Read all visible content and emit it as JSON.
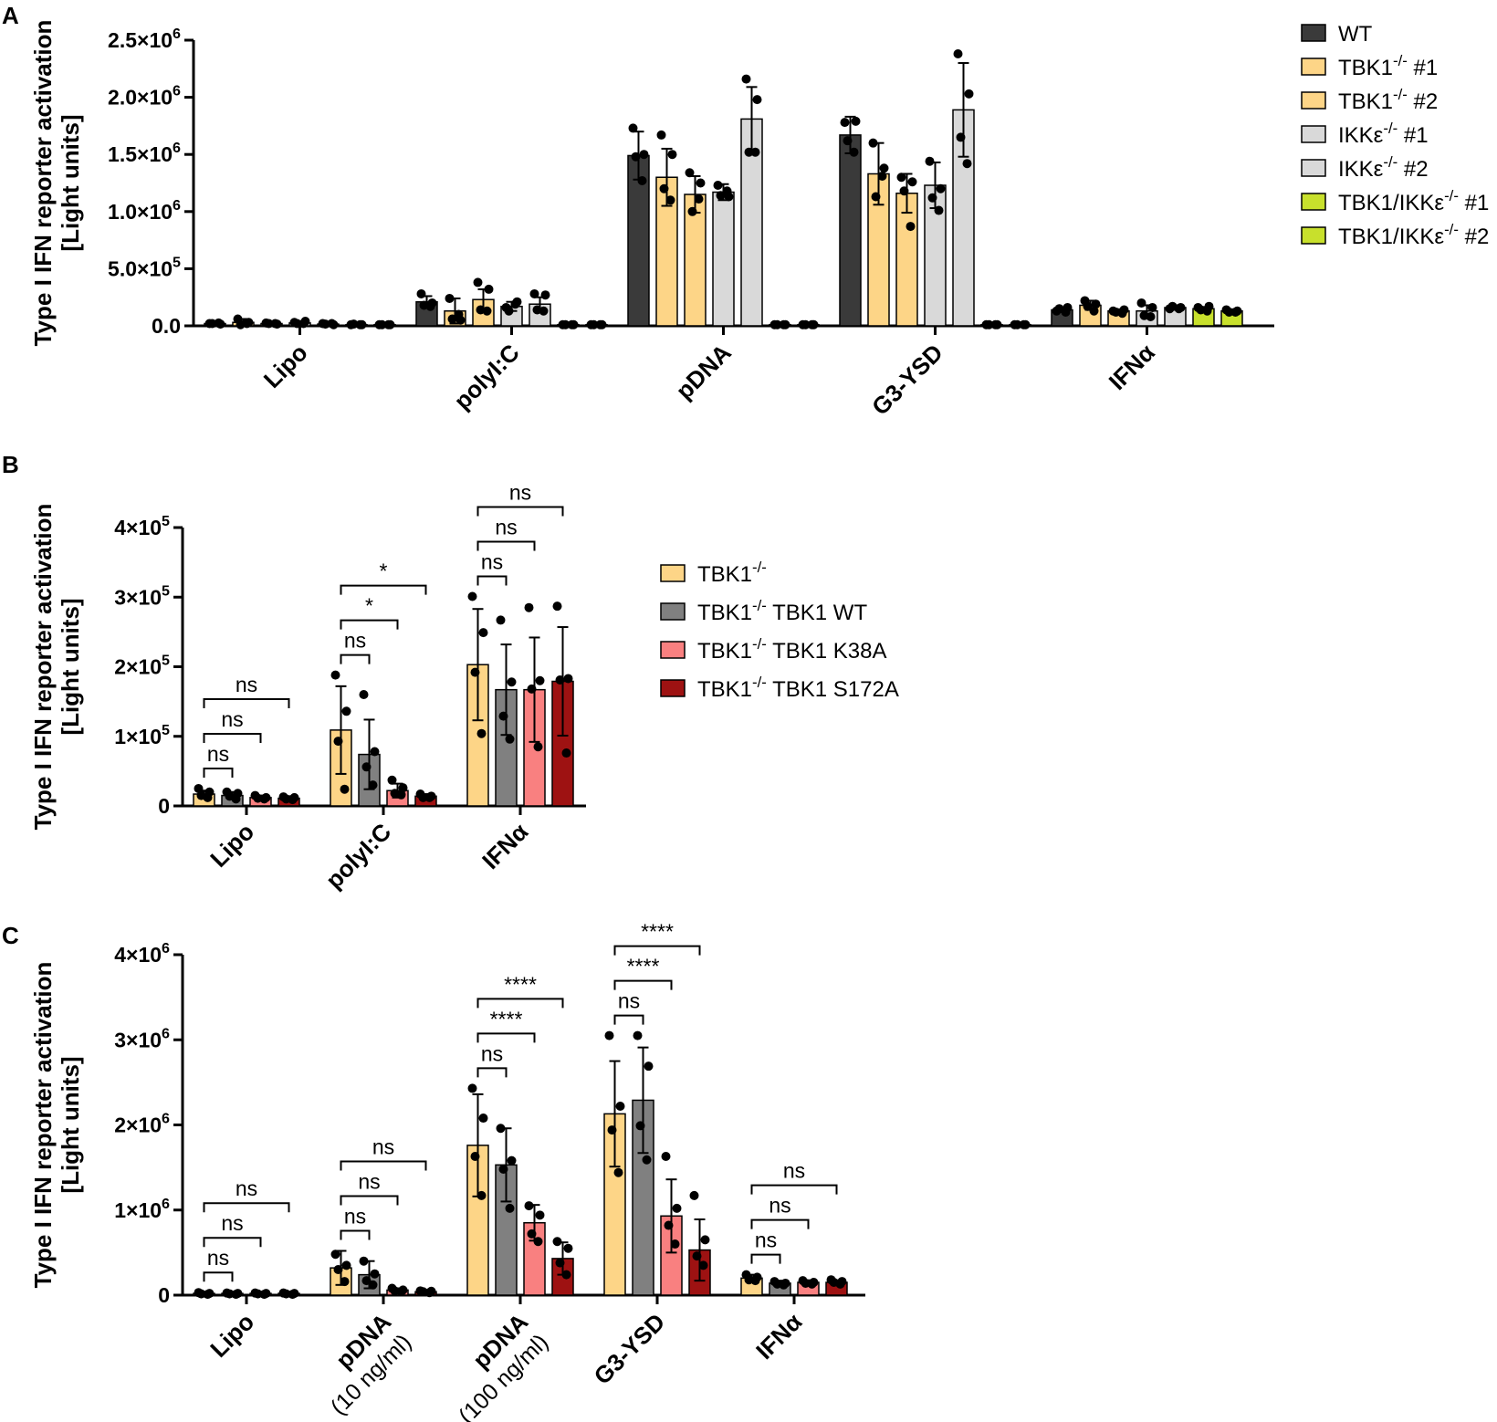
{
  "chart_data": [
    {
      "panel": "A",
      "type": "bar",
      "ylabel": [
        "Type I IFN reporter activation",
        "[Light units]"
      ],
      "ylim": [
        0,
        2500000
      ],
      "yticks": [
        {
          "value": 0,
          "label": "0.0"
        },
        {
          "value": 500000,
          "label": "5.0×10",
          "exp": "5"
        },
        {
          "value": 1000000,
          "label": "1.0×10",
          "exp": "6"
        },
        {
          "value": 1500000,
          "label": "1.5×10",
          "exp": "6"
        },
        {
          "value": 2000000,
          "label": "2.0×10",
          "exp": "6"
        },
        {
          "value": 2500000,
          "label": "2.5×10",
          "exp": "6"
        }
      ],
      "categories": [
        {
          "label": "Lipo"
        },
        {
          "label": "polyI:C"
        },
        {
          "label": "pDNA"
        },
        {
          "label": "G3-YSD"
        },
        {
          "label": "IFNα"
        }
      ],
      "series": [
        {
          "name": "WT",
          "suffix": "",
          "color": "#3a3a3a"
        },
        {
          "name": "TBK1",
          "sup": "-/-",
          "suffix": " #1",
          "color": "#fdd587"
        },
        {
          "name": "TBK1",
          "sup": "-/-",
          "suffix": " #2",
          "color": "#fdd587"
        },
        {
          "name": "IKKε",
          "sup": "-/-",
          "suffix": " #1",
          "color": "#d9d9d9"
        },
        {
          "name": "IKKε",
          "sup": "-/-",
          "suffix": " #2",
          "color": "#d9d9d9"
        },
        {
          "name": "TBK1/IKKε",
          "sup": "-/-",
          "suffix": " #1",
          "color": "#c8e02c"
        },
        {
          "name": "TBK1/IKKε",
          "sup": "-/-",
          "suffix": " #2",
          "color": "#c8e02c"
        }
      ],
      "values": [
        [
          20000,
          30000,
          20000,
          25000,
          15000,
          10000,
          10000
        ],
        [
          210000,
          130000,
          230000,
          170000,
          190000,
          10000,
          10000
        ],
        [
          1490000,
          1300000,
          1150000,
          1170000,
          1810000,
          10000,
          10000
        ],
        [
          1670000,
          1330000,
          1160000,
          1230000,
          1890000,
          10000,
          10000
        ],
        [
          140000,
          180000,
          130000,
          130000,
          160000,
          150000,
          130000
        ]
      ],
      "errors": [
        [
          10000,
          30000,
          10000,
          15000,
          10000,
          5000,
          5000
        ],
        [
          50000,
          110000,
          90000,
          40000,
          60000,
          5000,
          5000
        ],
        [
          210000,
          250000,
          160000,
          70000,
          280000,
          5000,
          5000
        ],
        [
          160000,
          270000,
          170000,
          200000,
          410000,
          5000,
          5000
        ],
        [
          20000,
          40000,
          15000,
          50000,
          20000,
          15000,
          15000
        ]
      ],
      "points": [
        [
          [
            20000,
            15000,
            20000,
            25000
          ],
          [
            60000,
            30000,
            10000,
            20000
          ],
          [
            25000,
            15000,
            20000,
            20000
          ],
          [
            30000,
            40000,
            20000,
            20000
          ],
          [
            20000,
            10000,
            15000,
            20000
          ],
          [
            10000,
            10000,
            15000,
            10000
          ],
          [
            10000,
            10000,
            10000,
            10000
          ]
        ],
        [
          [
            280000,
            200000,
            180000,
            170000
          ],
          [
            240000,
            50000,
            60000,
            100000
          ],
          [
            380000,
            320000,
            140000,
            130000
          ],
          [
            160000,
            210000,
            130000,
            190000
          ],
          [
            280000,
            270000,
            140000,
            130000
          ],
          [
            10000,
            10000,
            10000,
            10000
          ],
          [
            10000,
            10000,
            10000,
            10000
          ]
        ],
        [
          [
            1730000,
            1500000,
            1480000,
            1270000
          ],
          [
            1670000,
            1500000,
            1200000,
            1100000
          ],
          [
            1340000,
            1250000,
            1000000,
            1110000
          ],
          [
            1230000,
            1130000,
            1140000,
            1180000
          ],
          [
            2160000,
            1980000,
            1520000,
            1520000
          ],
          [
            10000,
            10000,
            10000,
            10000
          ],
          [
            10000,
            10000,
            10000,
            10000
          ]
        ],
        [
          [
            1780000,
            1790000,
            1620000,
            1520000
          ],
          [
            1600000,
            1380000,
            1130000,
            1310000
          ],
          [
            1300000,
            1260000,
            1180000,
            870000
          ],
          [
            1440000,
            1200000,
            1120000,
            1010000
          ],
          [
            2380000,
            2030000,
            1650000,
            1420000
          ],
          [
            10000,
            10000,
            10000,
            10000
          ],
          [
            10000,
            10000,
            10000,
            10000
          ]
        ],
        [
          [
            130000,
            160000,
            150000,
            120000
          ],
          [
            220000,
            190000,
            170000,
            130000
          ],
          [
            130000,
            140000,
            120000,
            110000
          ],
          [
            200000,
            160000,
            90000,
            80000
          ],
          [
            150000,
            160000,
            170000,
            150000
          ],
          [
            160000,
            170000,
            140000,
            130000
          ],
          [
            140000,
            130000,
            120000,
            120000
          ]
        ]
      ],
      "legend": "top-right"
    },
    {
      "panel": "B",
      "type": "bar",
      "ylabel": [
        "Type I IFN reporter activation",
        "[Light units]"
      ],
      "ylim": [
        0,
        400000
      ],
      "yticks": [
        {
          "value": 0,
          "label": "0"
        },
        {
          "value": 100000,
          "label": "1×10",
          "exp": "5"
        },
        {
          "value": 200000,
          "label": "2×10",
          "exp": "5"
        },
        {
          "value": 300000,
          "label": "3×10",
          "exp": "5"
        },
        {
          "value": 400000,
          "label": "4×10",
          "exp": "5"
        }
      ],
      "categories": [
        {
          "label": "Lipo"
        },
        {
          "label": "polyI:C"
        },
        {
          "label": "IFNα"
        }
      ],
      "series": [
        {
          "name": "TBK1",
          "sup": "-/-",
          "suffix": "",
          "color": "#fdd587"
        },
        {
          "name": "TBK1",
          "sup": "-/-",
          "suffix": " TBK1 WT",
          "color": "#808080"
        },
        {
          "name": "TBK1",
          "sup": "-/-",
          "suffix": " TBK1 K38A",
          "color": "#f98080"
        },
        {
          "name": "TBK1",
          "sup": "-/-",
          "suffix": " TBK1 S172A",
          "color": "#9e1212"
        }
      ],
      "values": [
        [
          17000,
          15000,
          12000,
          11000
        ],
        [
          109000,
          74000,
          22000,
          14000
        ],
        [
          203000,
          167000,
          167000,
          179000
        ]
      ],
      "errors": [
        [
          5000,
          5000,
          3000,
          3000
        ],
        [
          63000,
          50000,
          10000,
          3000
        ],
        [
          80000,
          65000,
          75000,
          78000
        ]
      ],
      "points": [
        [
          [
            25000,
            20000,
            15000,
            12000
          ],
          [
            20000,
            18000,
            14000,
            10000
          ],
          [
            15000,
            12000,
            11000,
            10000
          ],
          [
            13000,
            12000,
            10000,
            9000
          ]
        ],
        [
          [
            188000,
            136000,
            93000,
            24000
          ],
          [
            160000,
            78000,
            56000,
            30000
          ],
          [
            37000,
            26000,
            18000,
            16000
          ],
          [
            17000,
            14000,
            12000,
            12000
          ]
        ],
        [
          [
            301000,
            249000,
            192000,
            104000
          ],
          [
            267000,
            178000,
            129000,
            96000
          ],
          [
            285000,
            180000,
            168000,
            85000
          ],
          [
            287000,
            183000,
            181000,
            76000
          ]
        ]
      ],
      "annotations": [
        {
          "category": 0,
          "from": 0,
          "to": 1,
          "text": "ns",
          "level": 0
        },
        {
          "category": 0,
          "from": 0,
          "to": 2,
          "text": "ns",
          "level": 1
        },
        {
          "category": 0,
          "from": 0,
          "to": 3,
          "text": "ns",
          "level": 2
        },
        {
          "category": 1,
          "from": 0,
          "to": 1,
          "text": "ns",
          "level": 0
        },
        {
          "category": 1,
          "from": 0,
          "to": 2,
          "text": "*",
          "level": 1
        },
        {
          "category": 1,
          "from": 0,
          "to": 3,
          "text": "*",
          "level": 2
        },
        {
          "category": 2,
          "from": 0,
          "to": 1,
          "text": "ns",
          "level": 0
        },
        {
          "category": 2,
          "from": 0,
          "to": 2,
          "text": "ns",
          "level": 1
        },
        {
          "category": 2,
          "from": 0,
          "to": 3,
          "text": "ns",
          "level": 2
        }
      ],
      "legend": "right"
    },
    {
      "panel": "C",
      "type": "bar",
      "ylabel": [
        "Type I IFN reporter activation",
        "[Light units]"
      ],
      "ylim": [
        0,
        4000000
      ],
      "yticks": [
        {
          "value": 0,
          "label": "0"
        },
        {
          "value": 1000000,
          "label": "1×10",
          "exp": "6"
        },
        {
          "value": 2000000,
          "label": "2×10",
          "exp": "6"
        },
        {
          "value": 3000000,
          "label": "3×10",
          "exp": "6"
        },
        {
          "value": 4000000,
          "label": "4×10",
          "exp": "6"
        }
      ],
      "categories": [
        {
          "label": "Lipo"
        },
        {
          "label": "pDNA",
          "sub": "(10 ng/ml)"
        },
        {
          "label": "pDNA",
          "sub": "(100 ng/ml)"
        },
        {
          "label": "G3-YSD"
        },
        {
          "label": "IFNα"
        }
      ],
      "series_colors": [
        "#fdd587",
        "#808080",
        "#f98080",
        "#9e1212"
      ],
      "values": [
        [
          20000,
          20000,
          20000,
          20000
        ],
        [
          320000,
          240000,
          60000,
          40000
        ],
        [
          1760000,
          1530000,
          850000,
          430000
        ],
        [
          2130000,
          2290000,
          930000,
          530000
        ],
        [
          200000,
          140000,
          150000,
          150000
        ]
      ],
      "errors": [
        [
          5000,
          5000,
          5000,
          5000
        ],
        [
          200000,
          160000,
          20000,
          20000
        ],
        [
          600000,
          430000,
          210000,
          190000
        ],
        [
          620000,
          620000,
          430000,
          360000
        ],
        [
          40000,
          30000,
          25000,
          25000
        ]
      ],
      "points": [
        [
          [
            30000,
            20000,
            15000,
            10000
          ],
          [
            25000,
            20000,
            15000,
            10000
          ],
          [
            25000,
            20000,
            15000,
            10000
          ],
          [
            25000,
            20000,
            15000,
            10000
          ]
        ],
        [
          [
            480000,
            350000,
            300000,
            160000
          ],
          [
            400000,
            250000,
            170000,
            120000
          ],
          [
            80000,
            60000,
            50000,
            40000
          ],
          [
            50000,
            45000,
            40000,
            30000
          ]
        ],
        [
          [
            2430000,
            2080000,
            1630000,
            1170000
          ],
          [
            1960000,
            1580000,
            1480000,
            1020000
          ],
          [
            1050000,
            940000,
            720000,
            630000
          ],
          [
            630000,
            550000,
            380000,
            240000
          ]
        ],
        [
          [
            3050000,
            2220000,
            1940000,
            1440000
          ],
          [
            3050000,
            2690000,
            1990000,
            1590000
          ],
          [
            1630000,
            1020000,
            820000,
            600000
          ],
          [
            1170000,
            650000,
            460000,
            350000
          ]
        ],
        [
          [
            240000,
            210000,
            180000,
            170000
          ],
          [
            160000,
            140000,
            130000,
            120000
          ],
          [
            170000,
            150000,
            140000,
            130000
          ],
          [
            180000,
            160000,
            150000,
            130000
          ]
        ]
      ],
      "annotations": [
        {
          "category": 0,
          "from": 0,
          "to": 1,
          "text": "ns",
          "level": 0
        },
        {
          "category": 0,
          "from": 0,
          "to": 2,
          "text": "ns",
          "level": 1
        },
        {
          "category": 0,
          "from": 0,
          "to": 3,
          "text": "ns",
          "level": 2
        },
        {
          "category": 1,
          "from": 0,
          "to": 1,
          "text": "ns",
          "level": 0
        },
        {
          "category": 1,
          "from": 0,
          "to": 2,
          "text": "ns",
          "level": 1
        },
        {
          "category": 1,
          "from": 0,
          "to": 3,
          "text": "ns",
          "level": 2
        },
        {
          "category": 2,
          "from": 0,
          "to": 1,
          "text": "ns",
          "level": 0
        },
        {
          "category": 2,
          "from": 0,
          "to": 2,
          "text": "****",
          "level": 1
        },
        {
          "category": 2,
          "from": 0,
          "to": 3,
          "text": "****",
          "level": 2
        },
        {
          "category": 3,
          "from": 0,
          "to": 1,
          "text": "ns",
          "level": 0
        },
        {
          "category": 3,
          "from": 0,
          "to": 2,
          "text": "****",
          "level": 1
        },
        {
          "category": 3,
          "from": 0,
          "to": 3,
          "text": "****",
          "level": 2
        },
        {
          "category": 4,
          "from": 0,
          "to": 1,
          "text": "ns",
          "level": 0
        },
        {
          "category": 4,
          "from": 0,
          "to": 2,
          "text": "ns",
          "level": 1
        },
        {
          "category": 4,
          "from": 0,
          "to": 3,
          "text": "ns",
          "level": 2
        }
      ]
    }
  ]
}
